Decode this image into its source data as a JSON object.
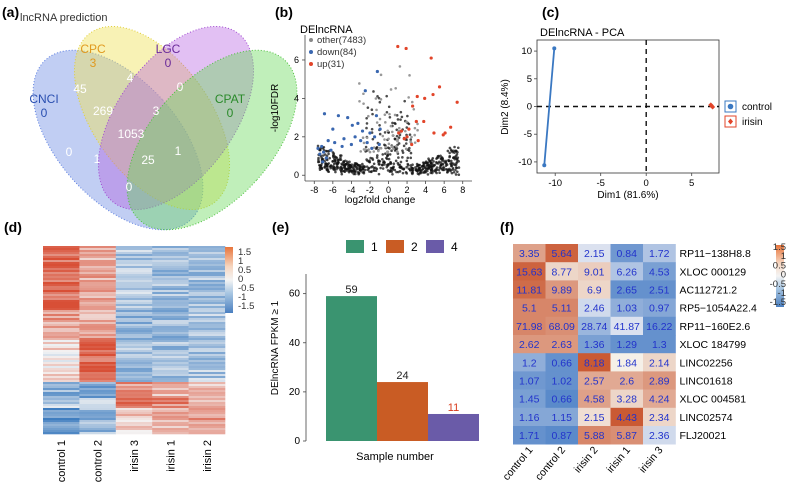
{
  "chart_data": [
    {
      "panel": "(a)",
      "type": "venn",
      "title": "lncRNA prediction",
      "sets": [
        {
          "name": "CNCI",
          "unique": "0",
          "color": "#5b7ee0"
        },
        {
          "name": "CPC",
          "unique": "3",
          "color": "#f0e35a"
        },
        {
          "name": "LGC",
          "unique": "0",
          "color": "#b35ae0"
        },
        {
          "name": "CPAT",
          "unique": "0",
          "color": "#69d95a"
        }
      ],
      "regions": [
        "45",
        "4",
        "0",
        "269",
        "3",
        "1053",
        "0",
        "1",
        "25",
        "1",
        "0"
      ]
    },
    {
      "panel": "(b)",
      "type": "scatter",
      "title": "DElncRNA",
      "xlabel": "log2fold change",
      "ylabel": "-log10FDR",
      "xticks": [
        "-8",
        "-6",
        "-4",
        "-2",
        "0",
        "2",
        "4",
        "6",
        "8"
      ],
      "yticks": [
        "0",
        "2",
        "4",
        "6"
      ],
      "xlim": [
        -9,
        9
      ],
      "ylim": [
        -0.3,
        7.3
      ],
      "legend": [
        {
          "label": "other(7483)",
          "color": "#888888"
        },
        {
          "label": "down(84)",
          "color": "#3a67b0"
        },
        {
          "label": "up(31)",
          "color": "#e2452a"
        }
      ],
      "up_points": [
        [
          1.0,
          6.7
        ],
        [
          1.9,
          6.6
        ],
        [
          4.6,
          6.1
        ],
        [
          5.5,
          4.6
        ],
        [
          6.7,
          2.5
        ],
        [
          7.4,
          3.8
        ],
        [
          6.1,
          2.2
        ],
        [
          3.9,
          4.0
        ],
        [
          3.1,
          4.1
        ],
        [
          2.6,
          3.6
        ],
        [
          4.8,
          4.2
        ],
        [
          2.0,
          2.0
        ],
        [
          1.1,
          2.2
        ],
        [
          3.0,
          2.8
        ],
        [
          3.8,
          2.8
        ],
        [
          1.4,
          2.3
        ],
        [
          2.5,
          1.6
        ],
        [
          4.9,
          2.2
        ],
        [
          5.9,
          2.1
        ],
        [
          2.2,
          2.4
        ],
        [
          3.2,
          1.8
        ],
        [
          1.7,
          1.9
        ]
      ],
      "down_points": [
        [
          -6.9,
          3.2
        ],
        [
          -5.4,
          3.1
        ],
        [
          -4.4,
          3.0
        ],
        [
          -3.3,
          2.7
        ],
        [
          -2.5,
          4.4
        ],
        [
          -1.2,
          5.4
        ],
        [
          -1.0,
          1.6
        ],
        [
          -1.5,
          2.0
        ],
        [
          -2.0,
          2.2
        ],
        [
          -2.8,
          2.3
        ],
        [
          -3.6,
          2.0
        ],
        [
          -4.8,
          1.9
        ],
        [
          -5.8,
          1.7
        ],
        [
          -6.5,
          1.8
        ],
        [
          -7.2,
          1.5
        ],
        [
          -7.6,
          1.4
        ],
        [
          -7.4,
          1.1
        ],
        [
          -7.0,
          1.2
        ],
        [
          -6.7,
          0.9
        ],
        [
          -7.1,
          0.7
        ],
        [
          -6.2,
          1.3
        ],
        [
          -1.8,
          1.4
        ],
        [
          -2.3,
          1.7
        ],
        [
          -3.0,
          1.8
        ],
        [
          -4.0,
          1.6
        ],
        [
          -5.0,
          1.5
        ],
        [
          -1.3,
          3.1
        ],
        [
          -0.9,
          2.4
        ],
        [
          -6.0,
          2.4
        ],
        [
          -3.9,
          2.6
        ]
      ]
    },
    {
      "panel": "(c)",
      "type": "scatter",
      "title": "DElncRNA - PCA",
      "xlabel": "Dim1 (81.6%)",
      "ylabel": "Dim2 (8.4%)",
      "xticks": [
        "-10",
        "-5",
        "0",
        "5"
      ],
      "yticks": [
        "-10",
        "-5",
        "0",
        "5",
        "10"
      ],
      "xlim": [
        -12,
        8
      ],
      "ylim": [
        -12,
        12
      ],
      "series": [
        {
          "name": "control",
          "color": "#3a78c2",
          "points": [
            [
              -10.1,
              10.5
            ],
            [
              -11.2,
              -10.6
            ]
          ]
        },
        {
          "name": "irisin",
          "color": "#e2452a",
          "points": [
            [
              7.1,
              0.3
            ],
            [
              7.3,
              -0.1
            ],
            [
              7.2,
              0.1
            ]
          ]
        }
      ]
    },
    {
      "panel": "(d)",
      "type": "heatmap",
      "columns": [
        "control 1",
        "control 2",
        "irisin 3",
        "irisin 1",
        "irisin 2"
      ],
      "scale_ticks": [
        "1.5",
        "1",
        "0.5",
        "0",
        "-0.5",
        "-1",
        "-1.5"
      ]
    },
    {
      "panel": "(e)",
      "type": "bar",
      "xlabel": "Sample number",
      "ylabel": "DElncRNA FPKM ≥ 1",
      "yticks": [
        "0",
        "20",
        "40",
        "60"
      ],
      "ylim": [
        0,
        68
      ],
      "categories": [
        "1",
        "2",
        "4"
      ],
      "values": [
        59,
        24,
        11
      ],
      "colors": [
        "#3a9470",
        "#c95c24",
        "#6a5ba8"
      ],
      "label_colors": [
        "#222222",
        "#222222",
        "#d83b1c"
      ]
    },
    {
      "panel": "(f)",
      "type": "heatmap",
      "columns": [
        "control 1",
        "control 2",
        "irisin 2",
        "irisin 1",
        "irisin 3"
      ],
      "rows": [
        "RP11−138H8.8",
        "XLOC 000129",
        "AC112721.2",
        "RP5−1054A22.4",
        "RP11−160E2.6",
        "XLOC 184799",
        "LINC02256",
        "LINC01618",
        "XLOC 004581",
        "LINC02574",
        "FLJ20021"
      ],
      "cells": [
        [
          "3.35",
          "5.64",
          "2.15",
          "0.84",
          "1.72"
        ],
        [
          "15.63",
          "8.77",
          "9.01",
          "6.26",
          "4.53"
        ],
        [
          "11.81",
          "9.89",
          "6.9",
          "2.65",
          "2.51"
        ],
        [
          "5.1",
          "5.11",
          "2.46",
          "1.03",
          "0.97"
        ],
        [
          "71.98",
          "68.09",
          "28.74",
          "41.87",
          "16.22"
        ],
        [
          "2.62",
          "2.63",
          "1.36",
          "1.29",
          "1.3"
        ],
        [
          "1.2",
          "0.66",
          "8.18",
          "1.84",
          "2.14"
        ],
        [
          "1.07",
          "1.02",
          "2.57",
          "2.6",
          "2.89"
        ],
        [
          "1.45",
          "0.66",
          "4.58",
          "3.28",
          "4.24"
        ],
        [
          "1.16",
          "1.15",
          "2.15",
          "4.43",
          "2.34"
        ],
        [
          "1.71",
          "0.87",
          "5.88",
          "5.87",
          "2.36"
        ]
      ],
      "zscores": [
        [
          0.9,
          1.6,
          -0.2,
          -1.2,
          -0.6
        ],
        [
          1.6,
          0.3,
          0.4,
          -0.6,
          -1.1
        ],
        [
          1.5,
          1.0,
          0.3,
          -1.3,
          -1.3
        ],
        [
          1.2,
          1.2,
          -0.3,
          -0.9,
          -1.0
        ],
        [
          1.2,
          1.1,
          -0.8,
          -0.2,
          -1.3
        ],
        [
          1.0,
          1.0,
          -1.1,
          -1.3,
          -1.3
        ],
        [
          -0.9,
          -1.3,
          1.7,
          0.0,
          0.3
        ],
        [
          -1.2,
          -1.3,
          0.8,
          0.8,
          1.0
        ],
        [
          -1.1,
          -1.4,
          0.9,
          0.3,
          0.8
        ],
        [
          -1.0,
          -1.0,
          0.2,
          1.7,
          0.3
        ],
        [
          -1.3,
          -1.4,
          1.2,
          1.1,
          -0.3
        ]
      ],
      "scale_ticks": [
        "1.5",
        "1",
        "0.5",
        "0",
        "-0.5",
        "-1",
        "-1.5"
      ]
    }
  ]
}
